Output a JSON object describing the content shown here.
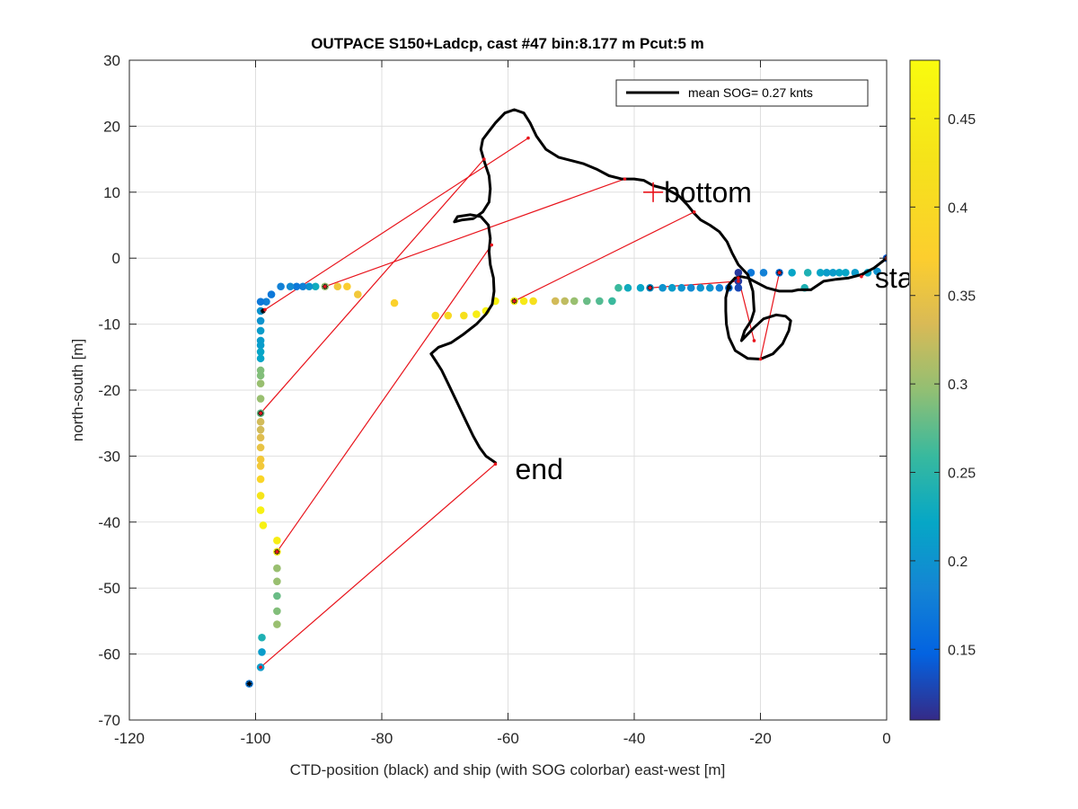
{
  "chart_data": {
    "type": "scatter",
    "title": "OUTPACE S150+Ladcp, cast #47 bin:8.177 m  Pcut:5 m",
    "xlabel": "CTD-position (black) and ship (with SOG colorbar) east-west [m]",
    "ylabel": "north-south [m]",
    "xlim": [
      -120,
      0
    ],
    "ylim": [
      -70,
      30
    ],
    "xticks": [
      -120,
      -100,
      -80,
      -60,
      -40,
      -20,
      0
    ],
    "yticks": [
      -70,
      -60,
      -50,
      -40,
      -30,
      -20,
      -10,
      0,
      10,
      20,
      30
    ],
    "grid": true,
    "legend": {
      "position": "top-right",
      "entries": [
        "mean SOG=  0.27 knts"
      ]
    },
    "colorbar": {
      "range": [
        0.11,
        0.483
      ],
      "ticks": [
        0.15,
        0.2,
        0.25,
        0.3,
        0.35,
        0.4,
        0.45
      ],
      "colormap": "parula"
    },
    "annotations": [
      {
        "text": "bottom",
        "x": -37,
        "y": 10,
        "marker": "+"
      },
      {
        "text": "start",
        "x": -3,
        "y": -3
      },
      {
        "text": "end",
        "x": -60,
        "y": -32
      }
    ],
    "ctd_track": [
      [
        0,
        0
      ],
      [
        -2,
        -1.5
      ],
      [
        -4,
        -2.5
      ],
      [
        -6,
        -3
      ],
      [
        -8,
        -3.2
      ],
      [
        -10,
        -3.5
      ],
      [
        -12,
        -4.8
      ],
      [
        -14,
        -4.8
      ],
      [
        -15,
        -5
      ],
      [
        -17,
        -5
      ],
      [
        -19,
        -4.5
      ],
      [
        -21,
        -3.5
      ],
      [
        -22,
        -3
      ],
      [
        -23,
        -2.8
      ],
      [
        -24,
        -3
      ],
      [
        -25,
        -4
      ],
      [
        -25.5,
        -6
      ],
      [
        -25.5,
        -8
      ],
      [
        -25.4,
        -10
      ],
      [
        -25,
        -12
      ],
      [
        -24,
        -14
      ],
      [
        -22,
        -15.2
      ],
      [
        -20,
        -15.3
      ],
      [
        -18,
        -14.5
      ],
      [
        -16.5,
        -13
      ],
      [
        -15.5,
        -11
      ],
      [
        -15.2,
        -9.5
      ],
      [
        -16,
        -8.8
      ],
      [
        -17.5,
        -8.6
      ],
      [
        -19.5,
        -9.2
      ],
      [
        -21,
        -10.5
      ],
      [
        -22.5,
        -12
      ],
      [
        -23,
        -12.5
      ],
      [
        -22.5,
        -11
      ],
      [
        -21.5,
        -9.5
      ],
      [
        -21,
        -8
      ],
      [
        -21.2,
        -5
      ],
      [
        -22,
        -2.5
      ],
      [
        -23.5,
        -1
      ],
      [
        -24.5,
        0.8
      ],
      [
        -25.3,
        2.5
      ],
      [
        -26.5,
        4
      ],
      [
        -28,
        5
      ],
      [
        -29.5,
        5.8
      ],
      [
        -30.5,
        6.8
      ],
      [
        -31.5,
        8
      ],
      [
        -33,
        9.5
      ],
      [
        -35,
        10.5
      ],
      [
        -37,
        11
      ],
      [
        -38.5,
        11.8
      ],
      [
        -40,
        12
      ],
      [
        -42,
        12
      ],
      [
        -44,
        12.5
      ],
      [
        -46,
        13.5
      ],
      [
        -48,
        14.3
      ],
      [
        -50,
        14.8
      ],
      [
        -52,
        15.3
      ],
      [
        -54,
        16.5
      ],
      [
        -55.5,
        18.5
      ],
      [
        -56.5,
        20.5
      ],
      [
        -57.5,
        22
      ],
      [
        -59,
        22.5
      ],
      [
        -60.5,
        22
      ],
      [
        -62,
        20.5
      ],
      [
        -63.2,
        19
      ],
      [
        -64,
        18
      ],
      [
        -64.3,
        16.5
      ],
      [
        -63.7,
        14.5
      ],
      [
        -63,
        12.5
      ],
      [
        -62.8,
        10.5
      ],
      [
        -63,
        8.5
      ],
      [
        -64,
        7
      ],
      [
        -65.5,
        6
      ],
      [
        -67.2,
        5.8
      ],
      [
        -68.5,
        5.5
      ],
      [
        -68,
        6.3
      ],
      [
        -66,
        6.6
      ],
      [
        -64.3,
        6.3
      ],
      [
        -63.1,
        5
      ],
      [
        -62.8,
        3
      ],
      [
        -63,
        1
      ],
      [
        -62.8,
        -1
      ],
      [
        -62.3,
        -3
      ],
      [
        -62.2,
        -5
      ],
      [
        -62.5,
        -7
      ],
      [
        -63.5,
        -8.5
      ],
      [
        -65,
        -10
      ],
      [
        -67,
        -11.5
      ],
      [
        -69,
        -12.8
      ],
      [
        -71,
        -13.5
      ],
      [
        -72.2,
        -14.5
      ],
      [
        -71.5,
        -15.5
      ],
      [
        -70.5,
        -17
      ],
      [
        -69.5,
        -19
      ],
      [
        -68.5,
        -21
      ],
      [
        -67.5,
        -23
      ],
      [
        -66.5,
        -25
      ],
      [
        -65.5,
        -27
      ],
      [
        -64.5,
        -28.7
      ],
      [
        -63.5,
        -30
      ],
      [
        -62,
        -31
      ]
    ],
    "ship_points": [
      [
        0,
        0,
        0.14
      ],
      [
        -1.5,
        -2,
        0.2
      ],
      [
        -3,
        -2.2,
        0.22
      ],
      [
        -5,
        -2.2,
        0.21
      ],
      [
        -6.5,
        -2.2,
        0.22
      ],
      [
        -7.5,
        -2.2,
        0.22
      ],
      [
        -8.5,
        -2.2,
        0.21
      ],
      [
        -9.5,
        -2.2,
        0.21
      ],
      [
        -10.5,
        -2.2,
        0.22
      ],
      [
        -12.5,
        -2.2,
        0.24
      ],
      [
        -13,
        -4.5,
        0.24
      ],
      [
        -15,
        -2.2,
        0.22
      ],
      [
        -17,
        -2.2,
        0.16
      ],
      [
        -19.5,
        -2.2,
        0.18
      ],
      [
        -21.5,
        -2.2,
        0.17
      ],
      [
        -23.5,
        -2.2,
        0.12
      ],
      [
        -23.5,
        -3.5,
        0.12
      ],
      [
        -23.5,
        -4.5,
        0.13
      ],
      [
        -25,
        -4.5,
        0.16
      ],
      [
        -26.5,
        -4.5,
        0.18
      ],
      [
        -28,
        -4.5,
        0.2
      ],
      [
        -29.5,
        -4.5,
        0.2
      ],
      [
        -31,
        -4.5,
        0.19
      ],
      [
        -32.5,
        -4.5,
        0.2
      ],
      [
        -34,
        -4.5,
        0.21
      ],
      [
        -35.5,
        -4.5,
        0.2
      ],
      [
        -37.5,
        -4.5,
        0.2
      ],
      [
        -39,
        -4.5,
        0.22
      ],
      [
        -41,
        -4.5,
        0.23
      ],
      [
        -42.5,
        -4.5,
        0.26
      ],
      [
        -43.5,
        -6.5,
        0.26
      ],
      [
        -45.5,
        -6.5,
        0.27
      ],
      [
        -47.5,
        -6.5,
        0.28
      ],
      [
        -49.5,
        -6.5,
        0.3
      ],
      [
        -51,
        -6.5,
        0.32
      ],
      [
        -52.5,
        -6.5,
        0.33
      ],
      [
        -56,
        -6.5,
        0.42
      ],
      [
        -57.5,
        -6.5,
        0.44
      ],
      [
        -59,
        -6.5,
        0.45
      ],
      [
        -62,
        -6.5,
        0.46
      ],
      [
        -63.5,
        -8,
        0.46
      ],
      [
        -65,
        -8.5,
        0.45
      ],
      [
        -67,
        -8.7,
        0.42
      ],
      [
        -69.5,
        -8.7,
        0.4
      ],
      [
        -71.5,
        -8.7,
        0.41
      ],
      [
        -78,
        -6.8,
        0.38
      ],
      [
        -83.8,
        -5.5,
        0.36
      ],
      [
        -85.5,
        -4.3,
        0.37
      ],
      [
        -87,
        -4.3,
        0.36
      ],
      [
        -89,
        -4.3,
        0.3
      ],
      [
        -90.5,
        -4.3,
        0.23
      ],
      [
        -91.5,
        -4.3,
        0.2
      ],
      [
        -92.5,
        -4.3,
        0.18
      ],
      [
        -93.5,
        -4.3,
        0.17
      ],
      [
        -94.5,
        -4.3,
        0.19
      ],
      [
        -96,
        -4.3,
        0.18
      ],
      [
        -97.5,
        -5.5,
        0.17
      ],
      [
        -98.3,
        -6.6,
        0.18
      ],
      [
        -99.2,
        -6.6,
        0.17
      ],
      [
        -99.2,
        -8,
        0.2
      ],
      [
        -99.2,
        -9.5,
        0.2
      ],
      [
        -99.2,
        -11,
        0.21
      ],
      [
        -99.2,
        -12.5,
        0.21
      ],
      [
        -99.2,
        -13.2,
        0.21
      ],
      [
        -99.2,
        -14.2,
        0.22
      ],
      [
        -99.2,
        -15.2,
        0.22
      ],
      [
        -99.2,
        -17,
        0.29
      ],
      [
        -99.2,
        -17.8,
        0.29
      ],
      [
        -99.2,
        -19,
        0.3
      ],
      [
        -99.2,
        -21.3,
        0.3
      ],
      [
        -99.2,
        -23.5,
        0.28
      ],
      [
        -99.2,
        -24.8,
        0.33
      ],
      [
        -99.2,
        -26,
        0.33
      ],
      [
        -99.2,
        -27.2,
        0.34
      ],
      [
        -99.2,
        -28.7,
        0.35
      ],
      [
        -99.2,
        -30.5,
        0.36
      ],
      [
        -99.2,
        -31.5,
        0.36
      ],
      [
        -99.2,
        -33.5,
        0.39
      ],
      [
        -99.2,
        -36,
        0.43
      ],
      [
        -99.2,
        -38.2,
        0.46
      ],
      [
        -98.8,
        -40.5,
        0.46
      ],
      [
        -96.6,
        -42.8,
        0.45
      ],
      [
        -96.6,
        -44.5,
        0.44
      ],
      [
        -96.6,
        -47,
        0.3
      ],
      [
        -96.6,
        -49,
        0.3
      ],
      [
        -96.6,
        -51.2,
        0.28
      ],
      [
        -96.6,
        -53.5,
        0.29
      ],
      [
        -96.6,
        -55.5,
        0.3
      ],
      [
        -99,
        -57.5,
        0.24
      ],
      [
        -99,
        -59.7,
        0.21
      ],
      [
        -99.2,
        -62,
        0.21
      ],
      [
        -101,
        -64.5,
        0.17
      ]
    ],
    "black_marked_points": [
      [
        0,
        0
      ],
      [
        -17,
        -2.2
      ],
      [
        -25,
        -4.5
      ],
      [
        -37.5,
        -4.5
      ],
      [
        -59,
        -6.5
      ],
      [
        -89,
        -4.3
      ],
      [
        -98.8,
        -8
      ],
      [
        -99.2,
        -23.5
      ],
      [
        -96.6,
        -44.5
      ],
      [
        -101,
        -64.5
      ]
    ],
    "red_connectors": [
      [
        [
          -4,
          -2.8
        ],
        [
          0,
          0
        ]
      ],
      [
        [
          -17,
          -2.2
        ],
        [
          -20,
          -15.3
        ]
      ],
      [
        [
          -23.5,
          -3
        ],
        [
          -21,
          -12.5
        ]
      ],
      [
        [
          -23.5,
          -3.5
        ],
        [
          -37.5,
          -4.5
        ]
      ],
      [
        [
          -30.5,
          7
        ],
        [
          -59,
          -6.5
        ]
      ],
      [
        [
          -41.5,
          12
        ],
        [
          -89,
          -4.3
        ]
      ],
      [
        [
          -56.8,
          18.2
        ],
        [
          -98.5,
          -7.8
        ]
      ],
      [
        [
          -63.8,
          15
        ],
        [
          -99.2,
          -23.5
        ]
      ],
      [
        [
          -62.6,
          2
        ],
        [
          -96.6,
          -44.5
        ]
      ],
      [
        [
          -62,
          -31.2
        ],
        [
          -99.2,
          -62
        ]
      ]
    ]
  }
}
